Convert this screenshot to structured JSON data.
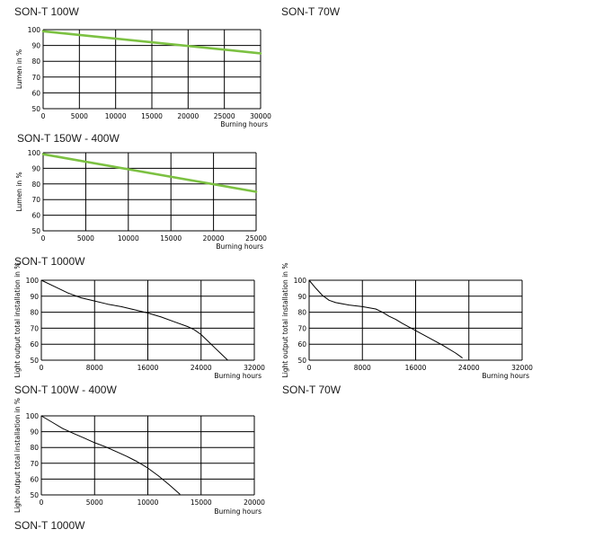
{
  "captions": {
    "son_t_100w": "SON-T 100W",
    "son_t_70w_top": "SON-T 70W",
    "son_t_150_400w": "SON-T 150W - 400W",
    "son_t_1000w_a": "SON-T 1000W",
    "son_t_100_400w": "SON-T 100W - 400W",
    "son_t_70w_bottom": "SON-T 70W",
    "son_t_1000w_b": "SON-T 1000W"
  },
  "chart_data": [
    {
      "type": "line",
      "title": "",
      "xlabel": "Burning hours",
      "ylabel": "Lumen in %",
      "xlim": [
        0,
        30000
      ],
      "ylim": [
        50,
        100
      ],
      "xticks": [
        0,
        5000,
        10000,
        15000,
        20000,
        25000,
        30000
      ],
      "yticks": [
        50,
        60,
        70,
        80,
        90,
        100
      ],
      "grid": true,
      "color": "#7cc142",
      "series": [
        {
          "x": [
            0,
            30000
          ],
          "y": [
            99,
            85
          ]
        }
      ]
    },
    {
      "type": "line",
      "title": "",
      "xlabel": "Burning hours",
      "ylabel": "Lumen in %",
      "xlim": [
        0,
        25000
      ],
      "ylim": [
        50,
        100
      ],
      "xticks": [
        0,
        5000,
        10000,
        15000,
        20000,
        25000
      ],
      "yticks": [
        50,
        60,
        70,
        80,
        90,
        100
      ],
      "grid": true,
      "color": "#7cc142",
      "series": [
        {
          "x": [
            0,
            25000
          ],
          "y": [
            99,
            75
          ]
        }
      ]
    },
    {
      "type": "line",
      "title": "",
      "xlabel": "Burning hours",
      "ylabel": "Light output total installation in %",
      "xlim": [
        0,
        32000
      ],
      "ylim": [
        50,
        100
      ],
      "xticks": [
        0,
        8000,
        16000,
        24000,
        32000
      ],
      "yticks": [
        50,
        60,
        70,
        80,
        90,
        100
      ],
      "grid": true,
      "color": "#000000",
      "series": [
        {
          "x": [
            0,
            2000,
            4000,
            6000,
            8000,
            10000,
            12000,
            14000,
            16000,
            18000,
            20000,
            22000,
            23000,
            24000,
            25000,
            26000,
            27000,
            28000
          ],
          "y": [
            100,
            96,
            92,
            89,
            87,
            85,
            83.5,
            81.5,
            79.5,
            77,
            74,
            71,
            69,
            66,
            62,
            58,
            54,
            50
          ]
        }
      ]
    },
    {
      "type": "line",
      "title": "",
      "xlabel": "Burning hours",
      "ylabel": "Light output total installation in %",
      "xlim": [
        0,
        32000
      ],
      "ylim": [
        50,
        100
      ],
      "xticks": [
        0,
        8000,
        16000,
        24000,
        32000
      ],
      "yticks": [
        50,
        60,
        70,
        80,
        90,
        100
      ],
      "grid": true,
      "color": "#000000",
      "series": [
        {
          "x": [
            0,
            1000,
            2000,
            3000,
            4000,
            6000,
            8000,
            10000,
            11000,
            12000,
            13000,
            14000,
            16000,
            18000,
            20000,
            22000,
            23000
          ],
          "y": [
            100,
            95,
            90.5,
            87.5,
            86,
            84.5,
            83.5,
            82,
            80,
            77.5,
            75.5,
            73,
            68.5,
            64,
            59.5,
            54.5,
            51.5
          ]
        }
      ]
    },
    {
      "type": "line",
      "title": "",
      "xlabel": "Burning hours",
      "ylabel": "Light output total installation in %",
      "xlim": [
        0,
        20000
      ],
      "ylim": [
        50,
        100
      ],
      "xticks": [
        0,
        5000,
        10000,
        15000,
        20000
      ],
      "yticks": [
        50,
        60,
        70,
        80,
        90,
        100
      ],
      "grid": true,
      "color": "#000000",
      "series": [
        {
          "x": [
            0,
            1000,
            2000,
            3000,
            4000,
            5000,
            6000,
            7000,
            8000,
            9000,
            10000,
            11000,
            12000,
            13000
          ],
          "y": [
            100,
            96,
            92,
            89,
            86,
            83,
            80.5,
            77.5,
            74.5,
            71,
            67,
            62,
            56.5,
            50.5
          ]
        }
      ]
    }
  ]
}
